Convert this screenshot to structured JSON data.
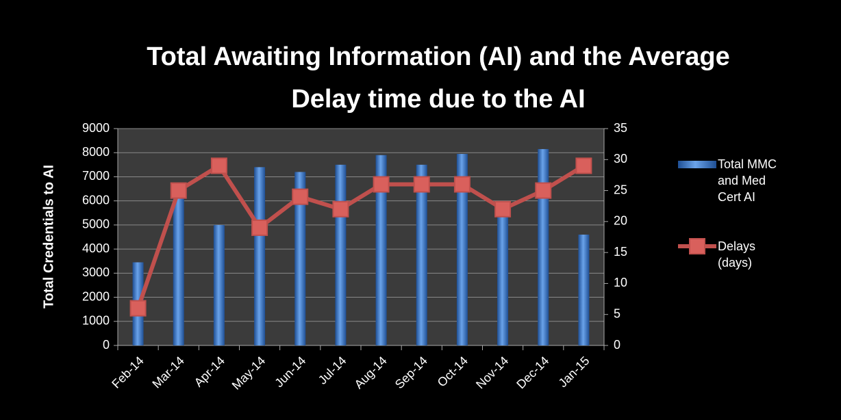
{
  "chart_data": {
    "type": "bar_line",
    "title": [
      "Total Awaiting Information (AI) and the Average",
      "Delay time due to the AI"
    ],
    "ylabel": "Total Credentials to AI",
    "categories": [
      "Feb-14",
      "Mar-14",
      "Apr-14",
      "May-14",
      "Jun-14",
      "Jul-14",
      "Aug-14",
      "Sep-14",
      "Oct-14",
      "Nov-14",
      "Dec-14",
      "Jan-15"
    ],
    "series": [
      {
        "name": "Total MMC and Med Cert AI",
        "color": "#3a74c4",
        "type": "bar",
        "values": [
          3450,
          6100,
          5000,
          7400,
          7200,
          7500,
          7900,
          7500,
          7950,
          5500,
          8150,
          4600
        ]
      },
      {
        "name": "Delays (days)",
        "color": "#c0504d",
        "type": "line",
        "axis": "y2",
        "values": [
          6,
          25,
          29,
          19,
          24,
          22,
          26,
          26,
          26,
          22,
          25,
          29
        ]
      }
    ],
    "ylim": [
      0,
      9000
    ],
    "yticks": [
      0,
      1000,
      2000,
      3000,
      4000,
      5000,
      6000,
      7000,
      8000,
      9000
    ],
    "y2lim": [
      0,
      35
    ],
    "y2ticks": [
      0,
      5,
      10,
      15,
      20,
      25,
      30,
      35
    ],
    "grid": true,
    "legend": "right"
  }
}
